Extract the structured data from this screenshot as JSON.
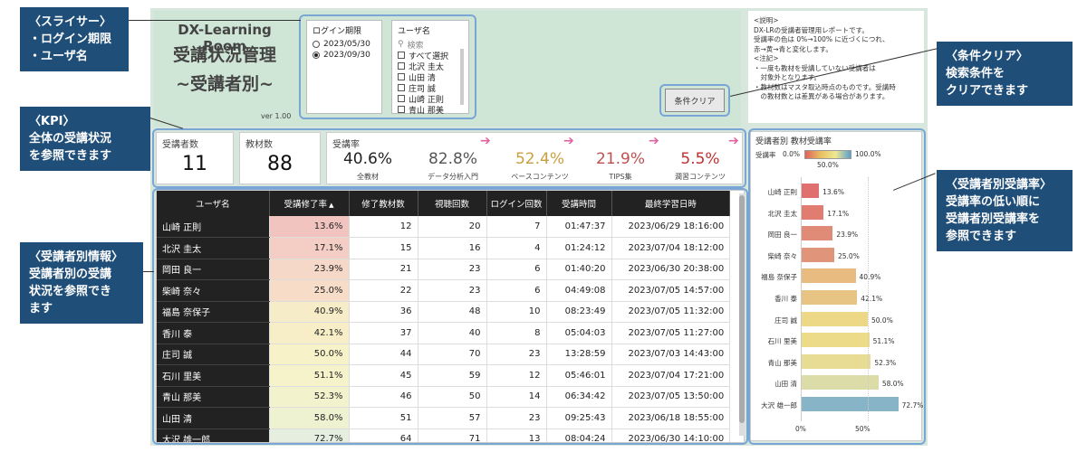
{
  "callouts": {
    "slicer": [
      "〈スライサー〉",
      "・ログイン期限",
      "・ユーザ名"
    ],
    "kpi": [
      "〈KPI〉",
      "全体の受講状況",
      "を参照できます"
    ],
    "user_info": [
      "〈受講者別情報〉",
      "受講者別の受講",
      "状況を参照でき",
      "ます"
    ],
    "clear": [
      "〈条件クリア〉",
      "検索条件を",
      "クリアできます"
    ],
    "user_rate": [
      "〈受講者別受講率〉",
      "受講率の低い順に",
      "受講者別受講率を",
      "参照できます"
    ]
  },
  "header": {
    "title1": "DX-Learning Room",
    "title2": "受講状況管理",
    "title3": "~受講者別~",
    "version": "ver 1.00"
  },
  "login_slicer": {
    "title": "ログイン期限",
    "options": [
      "2023/05/30",
      "2023/09/30"
    ],
    "selected": "2023/09/30"
  },
  "user_slicer": {
    "title": "ユーザ名",
    "search_placeholder": "検索",
    "options": [
      "すべて選択",
      "北沢 圭太",
      "山田 清",
      "庄司 誠",
      "山崎 正則",
      "青山 那美"
    ]
  },
  "clear_button": "条件クリア",
  "description": [
    "<説明>",
    "DX-LRの受講者管理用レポートです。",
    "受講率の色は 0%→100% に近づくにつれ、",
    "赤→黄→青と変化します。",
    "<注記>",
    "・一度も教材を受講していない受講者は",
    "　対象外となります。",
    "・教材数はマスタ取込時点のものです。受講時",
    "　の教材数とは差異がある場合があります。"
  ],
  "kpi": {
    "users_label": "受講者数",
    "users_value": "11",
    "materials_label": "教材数",
    "materials_value": "88",
    "rate_label": "受講率",
    "rates": [
      {
        "value": "40.6%",
        "label": "全教材",
        "color": "#222222"
      },
      {
        "value": "82.8%",
        "label": "データ分析入門",
        "color": "#555555"
      },
      {
        "value": "52.4%",
        "label": "ベースコンテンツ",
        "color": "#c8a040"
      },
      {
        "value": "21.9%",
        "label": "TIPS集",
        "color": "#c05050"
      },
      {
        "value": "5.5%",
        "label": "潤習コンテンツ",
        "color": "#c03030"
      }
    ]
  },
  "table": {
    "headers": [
      "ユーザ名",
      "受講修了率",
      "修了教材数",
      "視聴回数",
      "ログイン回数",
      "受講時間",
      "最終学習日時"
    ],
    "rows": [
      [
        "山崎 正則",
        "13.6%",
        "12",
        "20",
        "7",
        "01:47:37",
        "2023/06/29 18:16:00"
      ],
      [
        "北沢 圭太",
        "17.1%",
        "15",
        "16",
        "4",
        "01:24:12",
        "2023/07/04 18:12:00"
      ],
      [
        "岡田 良一",
        "23.9%",
        "21",
        "23",
        "6",
        "01:40:20",
        "2023/06/30 20:38:00"
      ],
      [
        "柴崎 奈々",
        "25.0%",
        "22",
        "23",
        "6",
        "04:49:08",
        "2023/07/05 14:57:00"
      ],
      [
        "福島 奈保子",
        "40.9%",
        "36",
        "48",
        "10",
        "08:23:49",
        "2023/07/05 11:32:00"
      ],
      [
        "香川 泰",
        "42.1%",
        "37",
        "40",
        "8",
        "05:04:03",
        "2023/07/05 11:27:00"
      ],
      [
        "庄司 誠",
        "50.0%",
        "44",
        "70",
        "23",
        "13:28:59",
        "2023/07/03 14:43:00"
      ],
      [
        "石川 里美",
        "51.1%",
        "45",
        "59",
        "12",
        "05:46:01",
        "2023/07/04 17:21:00"
      ],
      [
        "青山 那美",
        "52.3%",
        "46",
        "50",
        "14",
        "06:34:42",
        "2023/07/05 13:50:00"
      ],
      [
        "山田 清",
        "58.0%",
        "51",
        "57",
        "23",
        "09:25:43",
        "2023/06/18 18:55:00"
      ],
      [
        "大沢 雄一郎",
        "72.7%",
        "64",
        "71",
        "13",
        "08:04:24",
        "2023/06/30 14:10:00"
      ]
    ],
    "rate_colors": [
      "#f2c4c0",
      "#f4cdc4",
      "#f6d8c8",
      "#f7dcc8",
      "#f7ecc8",
      "#f7eec8",
      "#f8f2c8",
      "#f6f2ca",
      "#f2f2cc",
      "#eef2d0",
      "#e6eee0"
    ]
  },
  "chart": {
    "title": "受講者別 教材受講率",
    "legend_label": "受講率",
    "legend_min": "0.0%",
    "legend_mid": "50.0%",
    "legend_max": "100.0%",
    "x_ticks": [
      "0%",
      "50%"
    ]
  },
  "chart_data": {
    "type": "bar",
    "categories": [
      "山崎 正則",
      "北沢 圭太",
      "岡田 良一",
      "柴崎 奈々",
      "福島 奈保子",
      "香川 泰",
      "庄司 誠",
      "石川 里美",
      "青山 那美",
      "山田 清",
      "大沢 雄一郎"
    ],
    "values": [
      13.6,
      17.1,
      23.9,
      25.0,
      40.9,
      42.1,
      50.0,
      51.1,
      52.3,
      58.0,
      72.7
    ],
    "value_labels": [
      "13.6%",
      "17.1%",
      "23.9%",
      "25.0%",
      "40.9%",
      "42.1%",
      "50.0%",
      "51.1%",
      "52.3%",
      "58.0%",
      "72.7%"
    ],
    "colors": [
      "#e07070",
      "#e07c70",
      "#e08a78",
      "#e0947a",
      "#e8bc80",
      "#e8c484",
      "#ecd886",
      "#ecdc8a",
      "#e8dc94",
      "#dcdca8",
      "#88b4c8"
    ],
    "xlim": [
      0,
      100
    ],
    "orientation": "horizontal"
  }
}
